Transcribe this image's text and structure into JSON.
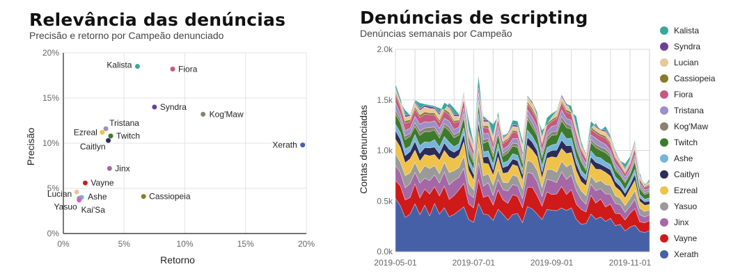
{
  "chart_data": [
    {
      "type": "scatter",
      "title": "Relevância das denúncias",
      "subtitle": "Precisão e retorno por Campeão denunciado",
      "xlabel": "Retorno",
      "ylabel": "Precisão",
      "xlim": [
        0,
        20
      ],
      "ylim": [
        0,
        20
      ],
      "x_ticks": [
        0,
        5,
        10,
        15,
        20
      ],
      "x_tick_labels": [
        "0%",
        "5%",
        "10%",
        "15%",
        "20%"
      ],
      "y_ticks": [
        0,
        5,
        10,
        15,
        20
      ],
      "y_tick_labels": [
        "0%",
        "5%",
        "10%",
        "15%",
        "20%"
      ],
      "grid": true,
      "points": [
        {
          "label": "Kalista",
          "x": 6.1,
          "y": 18.5,
          "color": "#3aa79c"
        },
        {
          "label": "Fiora",
          "x": 9.0,
          "y": 18.2,
          "color": "#c45a7d"
        },
        {
          "label": "Syndra",
          "x": 7.5,
          "y": 14.0,
          "color": "#6f3f98"
        },
        {
          "label": "Kog'Maw",
          "x": 11.5,
          "y": 13.2,
          "color": "#8c8171"
        },
        {
          "label": "Tristana",
          "x": 3.5,
          "y": 11.6,
          "color": "#9b90c8"
        },
        {
          "label": "Ezreal",
          "x": 3.2,
          "y": 11.2,
          "color": "#efc24b"
        },
        {
          "label": "Twitch",
          "x": 3.9,
          "y": 10.8,
          "color": "#3e7a2d"
        },
        {
          "label": "Caitlyn",
          "x": 3.7,
          "y": 10.3,
          "color": "#2f2b57"
        },
        {
          "label": "Xerath",
          "x": 19.7,
          "y": 9.8,
          "color": "#4660a8"
        },
        {
          "label": "Jinx",
          "x": 3.8,
          "y": 7.2,
          "color": "#a567a5"
        },
        {
          "label": "Vayne",
          "x": 1.8,
          "y": 5.6,
          "color": "#cf1a1a"
        },
        {
          "label": "Lucian",
          "x": 1.1,
          "y": 4.6,
          "color": "#e6c89c"
        },
        {
          "label": "Ashe",
          "x": 1.5,
          "y": 4.0,
          "color": "#76b6dc"
        },
        {
          "label": "Yasuo",
          "x": 1.3,
          "y": 3.9,
          "color": "#9a9a9a"
        },
        {
          "label": "Kai'Sa",
          "x": 1.3,
          "y": 3.7,
          "color": "#d45fc9"
        },
        {
          "label": "Cassiopeia",
          "x": 6.6,
          "y": 4.1,
          "color": "#857c2b"
        }
      ]
    },
    {
      "type": "area",
      "stacked": true,
      "title": "Denúncias de scripting",
      "subtitle": "Denúncias semanais por Campeão",
      "xlabel": "",
      "ylabel": "Contas denunciadas",
      "ylim": [
        0,
        2000
      ],
      "y_ticks": [
        0,
        500,
        1000,
        1500,
        2000
      ],
      "y_tick_labels": [
        "0.0k",
        "0.5k",
        "1.0k",
        "1.5k",
        "2.0k"
      ],
      "x_ticks": [
        0,
        4,
        8,
        12,
        16,
        20,
        24,
        28,
        32,
        36,
        40,
        44,
        48
      ],
      "x_tick_labels": [
        "2019-05-01",
        "2019-07-01",
        "2019-09-01",
        "2019-11-01"
      ],
      "x_tick_label_positions": [
        0,
        16,
        32,
        48
      ],
      "grid": true,
      "legend_position": "right",
      "x": [
        0,
        1,
        2,
        3,
        4,
        5,
        6,
        7,
        8,
        9,
        10,
        11,
        12,
        13,
        14,
        15,
        16,
        17,
        18,
        19,
        20,
        21,
        22,
        23,
        24,
        25,
        26,
        27,
        28,
        29,
        30,
        31,
        32,
        33,
        34,
        35,
        36,
        37,
        38,
        39,
        40,
        41,
        42,
        43,
        44,
        45,
        46,
        47,
        48,
        49,
        50,
        51,
        52
      ],
      "totals": [
        1620,
        1480,
        1400,
        1350,
        1500,
        1470,
        1460,
        1450,
        1440,
        1420,
        1400,
        1470,
        1420,
        1360,
        1560,
        1300,
        1080,
        1620,
        1340,
        1300,
        1260,
        1340,
        1150,
        1170,
        1300,
        1290,
        1100,
        1530,
        1480,
        1340,
        1200,
        1260,
        1330,
        1390,
        1550,
        1470,
        1380,
        1340,
        1090,
        970,
        1220,
        1270,
        1200,
        1240,
        1150,
        1000,
        900,
        870,
        940,
        1100,
        780,
        650,
        720
      ],
      "series": [
        {
          "name": "Xerath",
          "color": "#4660a8",
          "share": 0.283
        },
        {
          "name": "Vayne",
          "color": "#cf1a1a",
          "share": 0.13
        },
        {
          "name": "Jinx",
          "color": "#a567a5",
          "share": 0.09
        },
        {
          "name": "Yasuo",
          "color": "#9a9a9a",
          "share": 0.075
        },
        {
          "name": "Ezreal",
          "color": "#efc24b",
          "share": 0.09
        },
        {
          "name": "Caitlyn",
          "color": "#2f2b57",
          "share": 0.05
        },
        {
          "name": "Ashe",
          "color": "#76b6dc",
          "share": 0.045
        },
        {
          "name": "Twitch",
          "color": "#3e7a2d",
          "share": 0.065
        },
        {
          "name": "Kog'Maw",
          "color": "#8c8171",
          "share": 0.025
        },
        {
          "name": "Tristana",
          "color": "#9b90c8",
          "share": 0.04
        },
        {
          "name": "Fiora",
          "color": "#c45a7d",
          "share": 0.045
        },
        {
          "name": "Cassiopeia",
          "color": "#857c2b",
          "share": 0.015
        },
        {
          "name": "Lucian",
          "color": "#e6c89c",
          "share": 0.03
        },
        {
          "name": "Syndra",
          "color": "#6f3f98",
          "share": 0.012
        },
        {
          "name": "Kalista",
          "color": "#3aa79c",
          "share": 0.005
        }
      ]
    }
  ],
  "legend": [
    {
      "label": "Kalista",
      "color": "#3aa79c"
    },
    {
      "label": "Syndra",
      "color": "#6f3f98"
    },
    {
      "label": "Lucian",
      "color": "#e6c89c"
    },
    {
      "label": "Cassiopeia",
      "color": "#857c2b"
    },
    {
      "label": "Fiora",
      "color": "#c45a7d"
    },
    {
      "label": "Tristana",
      "color": "#9b90c8"
    },
    {
      "label": "Kog'Maw",
      "color": "#8c8171"
    },
    {
      "label": "Twitch",
      "color": "#3e7a2d"
    },
    {
      "label": "Ashe",
      "color": "#76b6dc"
    },
    {
      "label": "Caitlyn",
      "color": "#2f2b57"
    },
    {
      "label": "Ezreal",
      "color": "#efc24b"
    },
    {
      "label": "Yasuo",
      "color": "#9a9a9a"
    },
    {
      "label": "Jinx",
      "color": "#a567a5"
    },
    {
      "label": "Vayne",
      "color": "#cf1a1a"
    },
    {
      "label": "Xerath",
      "color": "#4660a8"
    }
  ]
}
